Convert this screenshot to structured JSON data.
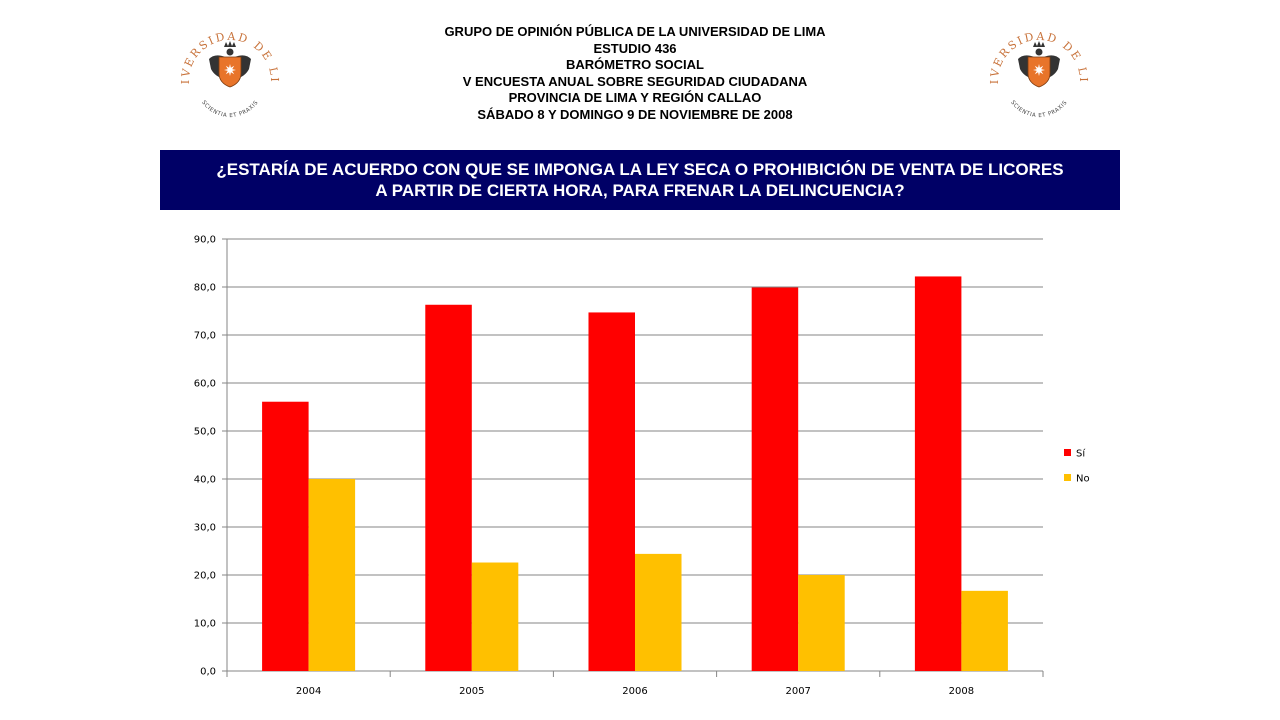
{
  "header": {
    "lines": [
      "GRUPO DE OPINIÓN PÚBLICA DE LA UNIVERSIDAD DE LIMA",
      "ESTUDIO 436",
      "BARÓMETRO SOCIAL",
      "V ENCUESTA ANUAL SOBRE SEGURIDAD CIUDADANA",
      "PROVINCIA DE LIMA Y REGIÓN CALLAO",
      "SÁBADO 8 Y DOMINGO 9 DE NOVIEMBRE DE 2008"
    ]
  },
  "logo": {
    "arc_text": "UNIVERSIDAD DE LIMA",
    "motto": "SCIENTIA ET PRAXIS",
    "colors": {
      "text": "#c8723a",
      "shield": "#e8742a",
      "eagle": "#333333"
    }
  },
  "question": {
    "line1": "¿ESTARÍA DE ACUERDO CON QUE SE IMPONGA LA LEY SECA O PROHIBICIÓN DE VENTA DE LICORES",
    "line2": "A PARTIR DE CIERTA HORA, PARA FRENAR LA DELINCUENCIA?",
    "background": "#000066"
  },
  "chart_data": {
    "type": "bar",
    "title": "",
    "xlabel": "",
    "ylabel": "",
    "categories": [
      "2004",
      "2005",
      "2006",
      "2007",
      "2008"
    ],
    "series": [
      {
        "name": "Sí",
        "color": "#ff0000",
        "values": [
          56.1,
          76.3,
          74.7,
          79.9,
          82.2
        ]
      },
      {
        "name": "No",
        "color": "#ffc000",
        "values": [
          40.0,
          22.6,
          24.4,
          20.0,
          16.7
        ]
      }
    ],
    "ylim": [
      0,
      90
    ],
    "yticks": [
      "0,0",
      "10,0",
      "20,0",
      "30,0",
      "40,0",
      "50,0",
      "60,0",
      "70,0",
      "80,0",
      "90,0"
    ],
    "grid": true,
    "legend": "right"
  }
}
